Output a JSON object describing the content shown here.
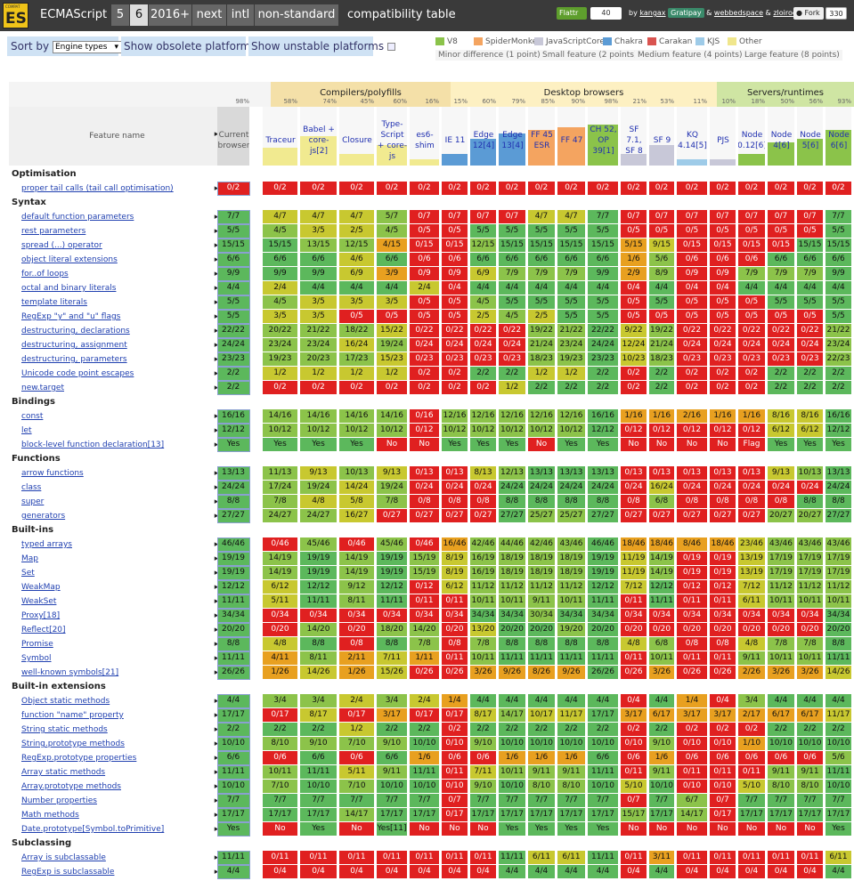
{
  "topbar": {
    "logo_tiny": "COMPAT",
    "logo": "ES",
    "brand": "ECMAScript",
    "tabs": [
      "5",
      "6",
      "2016+",
      "next",
      "intl",
      "non-standard"
    ],
    "active_tab": 1,
    "subtitle": "compatibility table",
    "flattr": "Flattr",
    "flattr_count": "40",
    "credits": {
      "by": "by",
      "a1": "kangax",
      "gratipay": "Gratipay",
      "amp": "&",
      "a2": "webbedspace",
      "amp2": "&",
      "a3": "zloirock"
    },
    "fork": "Fork",
    "fork_count": "330"
  },
  "options": {
    "sort_label": "Sort by",
    "sort_value": "Engine types",
    "show_obsolete": "Show obsolete platforms",
    "show_unstable": "Show unstable platforms"
  },
  "legend": {
    "engines": [
      {
        "name": "V8",
        "color": "#8bc34a"
      },
      {
        "name": "SpiderMonkey",
        "color": "#f4a460"
      },
      {
        "name": "JavaScriptCore",
        "color": "#c8c8d8"
      },
      {
        "name": "Chakra",
        "color": "#5b9bd5"
      },
      {
        "name": "Carakan",
        "color": "#d9534f"
      },
      {
        "name": "KJS",
        "color": "#9ecbe8"
      },
      {
        "name": "Other",
        "color": "#f0e68c"
      }
    ],
    "sizes": [
      "Minor difference (1 point)",
      "Small feature (2 points)",
      "Medium feature (4 points)",
      "Large feature (8 points)"
    ]
  },
  "groups": [
    {
      "name": "Compilers/polyfills"
    },
    {
      "name": "Desktop browsers"
    },
    {
      "name": "Servers/runtimes"
    }
  ],
  "feature_header": "Feature name",
  "columns": [
    {
      "label": "Current browser",
      "pct": "98%"
    },
    {
      "label": "Traceur",
      "pct": "58%"
    },
    {
      "label": "Babel + core-js[2]",
      "pct": "74%"
    },
    {
      "label": "Closure",
      "pct": "45%"
    },
    {
      "label": "Type-Script + core-js",
      "pct": "60%"
    },
    {
      "label": "es6-shim",
      "pct": "16%"
    },
    {
      "label": "IE 11",
      "pct": "15%"
    },
    {
      "label": "Edge 12[4]",
      "pct": "60%"
    },
    {
      "label": "Edge 13[4]",
      "pct": "79%"
    },
    {
      "label": "FF 45 ESR",
      "pct": "85%"
    },
    {
      "label": "FF 47",
      "pct": "90%"
    },
    {
      "label": "CH 52, OP 39[1]",
      "pct": "98%"
    },
    {
      "label": "SF 7.1, SF 8",
      "pct": "21%"
    },
    {
      "label": "SF 9",
      "pct": "53%"
    },
    {
      "label": "KQ 4.14[5]",
      "pct": "11%"
    },
    {
      "label": "PJS",
      "pct": "10%"
    },
    {
      "label": "Node 0.12[6]",
      "pct": "18%"
    },
    {
      "label": "Node 4[6]",
      "pct": "50%"
    },
    {
      "label": "Node 5[6]",
      "pct": "56%"
    },
    {
      "label": "Node 6[6]",
      "pct": "93%"
    }
  ],
  "rows": [
    {
      "section": "Optimisation"
    },
    {
      "name": "proper tail calls (tail call optimisation)",
      "v": [
        "0/2",
        "0/2",
        "0/2",
        "0/2",
        "0/2",
        "0/2",
        "0/2",
        "0/2",
        "0/2",
        "0/2",
        "0/2",
        "0/2",
        "0/2",
        "0/2",
        "0/2",
        "0/2",
        "0/2",
        "0/2",
        "0/2",
        "0/2"
      ]
    },
    {
      "section": "Syntax"
    },
    {
      "name": "default function parameters",
      "v": [
        "7/7",
        "4/7",
        "4/7",
        "4/7",
        "5/7",
        "0/7",
        "0/7",
        "0/7",
        "0/7",
        "4/7",
        "4/7",
        "7/7",
        "0/7",
        "0/7",
        "0/7",
        "0/7",
        "0/7",
        "0/7",
        "0/7",
        "7/7"
      ]
    },
    {
      "name": "rest parameters",
      "v": [
        "5/5",
        "4/5",
        "3/5",
        "2/5",
        "4/5",
        "0/5",
        "0/5",
        "5/5",
        "5/5",
        "5/5",
        "5/5",
        "5/5",
        "0/5",
        "0/5",
        "0/5",
        "0/5",
        "0/5",
        "0/5",
        "0/5",
        "5/5"
      ]
    },
    {
      "name": "spread (...) operator",
      "v": [
        "15/15",
        "15/15",
        "13/15",
        "12/15",
        "4/15",
        "0/15",
        "0/15",
        "12/15",
        "15/15",
        "15/15",
        "15/15",
        "15/15",
        "5/15",
        "9/15",
        "0/15",
        "0/15",
        "0/15",
        "0/15",
        "15/15",
        "15/15"
      ]
    },
    {
      "name": "object literal extensions",
      "v": [
        "6/6",
        "6/6",
        "6/6",
        "4/6",
        "6/6",
        "0/6",
        "0/6",
        "6/6",
        "6/6",
        "6/6",
        "6/6",
        "6/6",
        "1/6",
        "5/6",
        "0/6",
        "0/6",
        "0/6",
        "6/6",
        "6/6",
        "6/6"
      ]
    },
    {
      "name": "for..of loops",
      "v": [
        "9/9",
        "9/9",
        "9/9",
        "6/9",
        "3/9",
        "0/9",
        "0/9",
        "6/9",
        "7/9",
        "7/9",
        "7/9",
        "9/9",
        "2/9",
        "8/9",
        "0/9",
        "0/9",
        "7/9",
        "7/9",
        "7/9",
        "9/9"
      ]
    },
    {
      "name": "octal and binary literals",
      "v": [
        "4/4",
        "2/4",
        "4/4",
        "4/4",
        "4/4",
        "2/4",
        "0/4",
        "4/4",
        "4/4",
        "4/4",
        "4/4",
        "4/4",
        "0/4",
        "4/4",
        "0/4",
        "0/4",
        "4/4",
        "4/4",
        "4/4",
        "4/4"
      ]
    },
    {
      "name": "template literals",
      "v": [
        "5/5",
        "4/5",
        "3/5",
        "3/5",
        "3/5",
        "0/5",
        "0/5",
        "4/5",
        "5/5",
        "5/5",
        "5/5",
        "5/5",
        "0/5",
        "5/5",
        "0/5",
        "0/5",
        "0/5",
        "5/5",
        "5/5",
        "5/5"
      ]
    },
    {
      "name": "RegExp \"y\" and \"u\" flags",
      "v": [
        "5/5",
        "3/5",
        "3/5",
        "0/5",
        "0/5",
        "0/5",
        "0/5",
        "2/5",
        "4/5",
        "2/5",
        "5/5",
        "5/5",
        "0/5",
        "0/5",
        "0/5",
        "0/5",
        "0/5",
        "0/5",
        "0/5",
        "5/5"
      ]
    },
    {
      "name": "destructuring, declarations",
      "v": [
        "22/22",
        "20/22",
        "21/22",
        "18/22",
        "15/22",
        "0/22",
        "0/22",
        "0/22",
        "0/22",
        "19/22",
        "21/22",
        "22/22",
        "9/22",
        "19/22",
        "0/22",
        "0/22",
        "0/22",
        "0/22",
        "0/22",
        "21/22"
      ]
    },
    {
      "name": "destructuring, assignment",
      "v": [
        "24/24",
        "23/24",
        "23/24",
        "16/24",
        "19/24",
        "0/24",
        "0/24",
        "0/24",
        "0/24",
        "21/24",
        "23/24",
        "24/24",
        "12/24",
        "21/24",
        "0/24",
        "0/24",
        "0/24",
        "0/24",
        "0/24",
        "23/24"
      ]
    },
    {
      "name": "destructuring, parameters",
      "v": [
        "23/23",
        "19/23",
        "20/23",
        "17/23",
        "15/23",
        "0/23",
        "0/23",
        "0/23",
        "0/23",
        "18/23",
        "19/23",
        "23/23",
        "10/23",
        "18/23",
        "0/23",
        "0/23",
        "0/23",
        "0/23",
        "0/23",
        "22/23"
      ]
    },
    {
      "name": "Unicode code point escapes",
      "v": [
        "2/2",
        "1/2",
        "1/2",
        "1/2",
        "1/2",
        "0/2",
        "0/2",
        "2/2",
        "2/2",
        "1/2",
        "1/2",
        "2/2",
        "0/2",
        "2/2",
        "0/2",
        "0/2",
        "0/2",
        "2/2",
        "2/2",
        "2/2"
      ]
    },
    {
      "name": "new.target",
      "v": [
        "2/2",
        "0/2",
        "0/2",
        "0/2",
        "0/2",
        "0/2",
        "0/2",
        "0/2",
        "1/2",
        "2/2",
        "2/2",
        "2/2",
        "0/2",
        "2/2",
        "0/2",
        "0/2",
        "0/2",
        "2/2",
        "2/2",
        "2/2"
      ]
    },
    {
      "section": "Bindings"
    },
    {
      "name": "const",
      "v": [
        "16/16",
        "14/16",
        "14/16",
        "14/16",
        "14/16",
        "0/16",
        "12/16",
        "12/16",
        "12/16",
        "12/16",
        "12/16",
        "16/16",
        "1/16",
        "1/16",
        "2/16",
        "1/16",
        "1/16",
        "8/16",
        "8/16",
        "16/16"
      ]
    },
    {
      "name": "let",
      "v": [
        "12/12",
        "10/12",
        "10/12",
        "10/12",
        "10/12",
        "0/12",
        "10/12",
        "10/12",
        "10/12",
        "10/12",
        "10/12",
        "12/12",
        "0/12",
        "0/12",
        "0/12",
        "0/12",
        "0/12",
        "6/12",
        "6/12",
        "12/12"
      ]
    },
    {
      "name": "block-level function declaration[13]",
      "v": [
        "Yes",
        "Yes",
        "Yes",
        "Yes",
        "No",
        "No",
        "Yes",
        "Yes",
        "Yes",
        "No",
        "Yes",
        "Yes",
        "No",
        "No",
        "No",
        "No",
        "Flag",
        "Yes",
        "Yes",
        "Yes"
      ]
    },
    {
      "section": "Functions"
    },
    {
      "name": "arrow functions",
      "v": [
        "13/13",
        "11/13",
        "9/13",
        "10/13",
        "9/13",
        "0/13",
        "0/13",
        "8/13",
        "12/13",
        "13/13",
        "13/13",
        "13/13",
        "0/13",
        "0/13",
        "0/13",
        "0/13",
        "0/13",
        "9/13",
        "10/13",
        "13/13"
      ]
    },
    {
      "name": "class",
      "v": [
        "24/24",
        "17/24",
        "19/24",
        "14/24",
        "19/24",
        "0/24",
        "0/24",
        "0/24",
        "24/24",
        "24/24",
        "24/24",
        "24/24",
        "0/24",
        "16/24",
        "0/24",
        "0/24",
        "0/24",
        "0/24",
        "0/24",
        "24/24"
      ]
    },
    {
      "name": "super",
      "v": [
        "8/8",
        "7/8",
        "4/8",
        "5/8",
        "7/8",
        "0/8",
        "0/8",
        "0/8",
        "8/8",
        "8/8",
        "8/8",
        "8/8",
        "0/8",
        "6/8",
        "0/8",
        "0/8",
        "0/8",
        "0/8",
        "8/8",
        "8/8"
      ]
    },
    {
      "name": "generators",
      "v": [
        "27/27",
        "24/27",
        "24/27",
        "16/27",
        "0/27",
        "0/27",
        "0/27",
        "0/27",
        "27/27",
        "25/27",
        "25/27",
        "27/27",
        "0/27",
        "0/27",
        "0/27",
        "0/27",
        "0/27",
        "20/27",
        "20/27",
        "27/27"
      ]
    },
    {
      "section": "Built-ins"
    },
    {
      "name": "typed arrays",
      "v": [
        "46/46",
        "0/46",
        "45/46",
        "0/46",
        "45/46",
        "0/46",
        "16/46",
        "42/46",
        "44/46",
        "42/46",
        "43/46",
        "46/46",
        "18/46",
        "18/46",
        "8/46",
        "18/46",
        "23/46",
        "43/46",
        "43/46",
        "43/46"
      ]
    },
    {
      "name": "Map",
      "v": [
        "19/19",
        "14/19",
        "19/19",
        "14/19",
        "19/19",
        "15/19",
        "8/19",
        "16/19",
        "18/19",
        "18/19",
        "18/19",
        "19/19",
        "11/19",
        "14/19",
        "0/19",
        "0/19",
        "13/19",
        "17/19",
        "17/19",
        "17/19"
      ]
    },
    {
      "name": "Set",
      "v": [
        "19/19",
        "14/19",
        "19/19",
        "14/19",
        "19/19",
        "15/19",
        "8/19",
        "16/19",
        "18/19",
        "18/19",
        "18/19",
        "19/19",
        "11/19",
        "14/19",
        "0/19",
        "0/19",
        "13/19",
        "17/19",
        "17/19",
        "17/19"
      ]
    },
    {
      "name": "WeakMap",
      "v": [
        "12/12",
        "6/12",
        "12/12",
        "9/12",
        "12/12",
        "0/12",
        "6/12",
        "11/12",
        "11/12",
        "11/12",
        "11/12",
        "12/12",
        "7/12",
        "12/12",
        "0/12",
        "0/12",
        "7/12",
        "11/12",
        "11/12",
        "11/12"
      ]
    },
    {
      "name": "WeakSet",
      "v": [
        "11/11",
        "5/11",
        "11/11",
        "8/11",
        "11/11",
        "0/11",
        "0/11",
        "10/11",
        "10/11",
        "9/11",
        "10/11",
        "11/11",
        "0/11",
        "11/11",
        "0/11",
        "0/11",
        "6/11",
        "10/11",
        "10/11",
        "10/11"
      ]
    },
    {
      "name": "Proxy[18]",
      "v": [
        "34/34",
        "0/34",
        "0/34",
        "0/34",
        "0/34",
        "0/34",
        "0/34",
        "34/34",
        "34/34",
        "30/34",
        "34/34",
        "34/34",
        "0/34",
        "0/34",
        "0/34",
        "0/34",
        "0/34",
        "0/34",
        "0/34",
        "34/34"
      ]
    },
    {
      "name": "Reflect[20]",
      "v": [
        "20/20",
        "0/20",
        "14/20",
        "0/20",
        "18/20",
        "14/20",
        "0/20",
        "13/20",
        "20/20",
        "20/20",
        "19/20",
        "20/20",
        "0/20",
        "0/20",
        "0/20",
        "0/20",
        "0/20",
        "0/20",
        "0/20",
        "20/20"
      ]
    },
    {
      "name": "Promise",
      "v": [
        "8/8",
        "4/8",
        "8/8",
        "0/8",
        "8/8",
        "7/8",
        "0/8",
        "7/8",
        "8/8",
        "8/8",
        "8/8",
        "8/8",
        "4/8",
        "6/8",
        "0/8",
        "0/8",
        "4/8",
        "7/8",
        "7/8",
        "8/8"
      ]
    },
    {
      "name": "Symbol",
      "v": [
        "11/11",
        "4/11",
        "8/11",
        "2/11",
        "7/11",
        "1/11",
        "0/11",
        "10/11",
        "11/11",
        "11/11",
        "11/11",
        "11/11",
        "0/11",
        "10/11",
        "0/11",
        "0/11",
        "9/11",
        "10/11",
        "10/11",
        "11/11"
      ]
    },
    {
      "name": "well-known symbols[21]",
      "v": [
        "26/26",
        "1/26",
        "14/26",
        "1/26",
        "15/26",
        "0/26",
        "0/26",
        "3/26",
        "9/26",
        "8/26",
        "9/26",
        "26/26",
        "0/26",
        "3/26",
        "0/26",
        "0/26",
        "2/26",
        "3/26",
        "3/26",
        "14/26"
      ]
    },
    {
      "section": "Built-in extensions"
    },
    {
      "name": "Object static methods",
      "v": [
        "4/4",
        "3/4",
        "3/4",
        "2/4",
        "3/4",
        "2/4",
        "1/4",
        "4/4",
        "4/4",
        "4/4",
        "4/4",
        "4/4",
        "0/4",
        "4/4",
        "1/4",
        "0/4",
        "3/4",
        "4/4",
        "4/4",
        "4/4"
      ]
    },
    {
      "name": "function \"name\" property",
      "v": [
        "17/17",
        "0/17",
        "8/17",
        "0/17",
        "3/17",
        "0/17",
        "0/17",
        "8/17",
        "14/17",
        "10/17",
        "11/17",
        "17/17",
        "3/17",
        "6/17",
        "3/17",
        "3/17",
        "2/17",
        "6/17",
        "6/17",
        "11/17"
      ]
    },
    {
      "name": "String static methods",
      "v": [
        "2/2",
        "2/2",
        "2/2",
        "1/2",
        "2/2",
        "2/2",
        "0/2",
        "2/2",
        "2/2",
        "2/2",
        "2/2",
        "2/2",
        "0/2",
        "2/2",
        "0/2",
        "0/2",
        "0/2",
        "2/2",
        "2/2",
        "2/2"
      ]
    },
    {
      "name": "String.prototype methods",
      "v": [
        "10/10",
        "8/10",
        "9/10",
        "7/10",
        "9/10",
        "10/10",
        "0/10",
        "9/10",
        "10/10",
        "10/10",
        "10/10",
        "10/10",
        "0/10",
        "9/10",
        "0/10",
        "0/10",
        "1/10",
        "10/10",
        "10/10",
        "10/10"
      ]
    },
    {
      "name": "RegExp.prototype properties",
      "v": [
        "6/6",
        "0/6",
        "6/6",
        "0/6",
        "6/6",
        "1/6",
        "0/6",
        "0/6",
        "1/6",
        "1/6",
        "1/6",
        "6/6",
        "0/6",
        "1/6",
        "0/6",
        "0/6",
        "0/6",
        "0/6",
        "0/6",
        "5/6"
      ]
    },
    {
      "name": "Array static methods",
      "v": [
        "11/11",
        "10/11",
        "11/11",
        "5/11",
        "9/11",
        "11/11",
        "0/11",
        "7/11",
        "10/11",
        "9/11",
        "9/11",
        "11/11",
        "0/11",
        "9/11",
        "0/11",
        "0/11",
        "0/11",
        "9/11",
        "9/11",
        "11/11"
      ]
    },
    {
      "name": "Array.prototype methods",
      "v": [
        "10/10",
        "7/10",
        "10/10",
        "7/10",
        "10/10",
        "10/10",
        "0/10",
        "9/10",
        "10/10",
        "8/10",
        "8/10",
        "10/10",
        "5/10",
        "10/10",
        "0/10",
        "0/10",
        "5/10",
        "8/10",
        "8/10",
        "10/10"
      ]
    },
    {
      "name": "Number properties",
      "v": [
        "7/7",
        "7/7",
        "7/7",
        "7/7",
        "7/7",
        "7/7",
        "0/7",
        "7/7",
        "7/7",
        "7/7",
        "7/7",
        "7/7",
        "0/7",
        "7/7",
        "6/7",
        "0/7",
        "7/7",
        "7/7",
        "7/7",
        "7/7"
      ]
    },
    {
      "name": "Math methods",
      "v": [
        "17/17",
        "17/17",
        "17/17",
        "14/17",
        "17/17",
        "17/17",
        "0/17",
        "17/17",
        "17/17",
        "17/17",
        "17/17",
        "17/17",
        "15/17",
        "17/17",
        "14/17",
        "0/17",
        "17/17",
        "17/17",
        "17/17",
        "17/17"
      ]
    },
    {
      "name": "Date.prototype[Symbol.toPrimitive]",
      "v": [
        "Yes",
        "No",
        "Yes",
        "No",
        "Yes[11]",
        "No",
        "No",
        "No",
        "Yes",
        "Yes",
        "Yes",
        "Yes",
        "No",
        "No",
        "No",
        "No",
        "No",
        "No",
        "No",
        "Yes"
      ]
    },
    {
      "section": "Subclassing"
    },
    {
      "name": "Array is subclassable",
      "v": [
        "11/11",
        "0/11",
        "0/11",
        "0/11",
        "0/11",
        "0/11",
        "0/11",
        "0/11",
        "11/11",
        "6/11",
        "6/11",
        "11/11",
        "0/11",
        "3/11",
        "0/11",
        "0/11",
        "0/11",
        "0/11",
        "0/11",
        "6/11"
      ]
    },
    {
      "name": "RegExp is subclassable",
      "v": [
        "4/4",
        "0/4",
        "0/4",
        "0/4",
        "0/4",
        "0/4",
        "0/4",
        "0/4",
        "4/4",
        "4/4",
        "4/4",
        "4/4",
        "0/4",
        "4/4",
        "0/4",
        "0/4",
        "0/4",
        "0/4",
        "0/4",
        "4/4"
      ]
    }
  ]
}
